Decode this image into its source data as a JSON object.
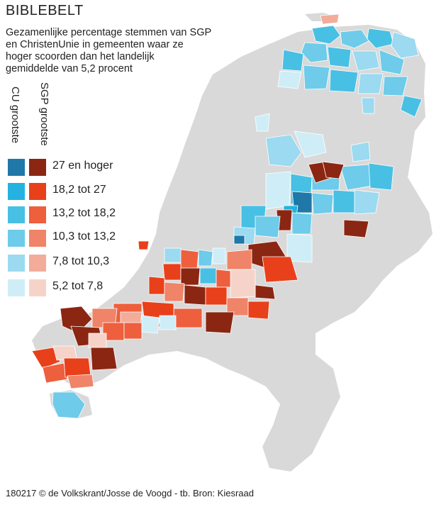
{
  "title": "BIBLEBELT",
  "subtitle_lines": [
    "Gezamenlijke percentage stemmen van SGP",
    "en ChristenUnie in gemeenten waar ze",
    "hoger scoorden dan het landelijk",
    "gemiddelde van 5,2 procent"
  ],
  "legend": {
    "cu_heading": "CU grootste",
    "sgp_heading": "SGP grootste",
    "classes": [
      {
        "label": "27 en hoger",
        "cu_color": "#1f78a8",
        "sgp_color": "#8b2612"
      },
      {
        "label": "18,2 tot 27",
        "cu_color": "#25b2e0",
        "sgp_color": "#e8401a"
      },
      {
        "label": "13,2 tot 18,2",
        "cu_color": "#48c0e4",
        "sgp_color": "#ee5f3e"
      },
      {
        "label": "10,3 tot 13,2",
        "cu_color": "#6ecbe9",
        "sgp_color": "#ef8468"
      },
      {
        "label": "7,8 tot 10,3",
        "cu_color": "#9bdaf0",
        "sgp_color": "#f2ac99"
      },
      {
        "label": "5,2 tot 7,8",
        "cu_color": "#cfedf7",
        "sgp_color": "#f6d3c9"
      }
    ]
  },
  "colors": {
    "land": "#d9d9d9",
    "background": "#ffffff",
    "text": "#222222"
  },
  "credit": "180217 © de Volkskrant/Josse de Voogd - tb. Bron: Kiesraad"
}
